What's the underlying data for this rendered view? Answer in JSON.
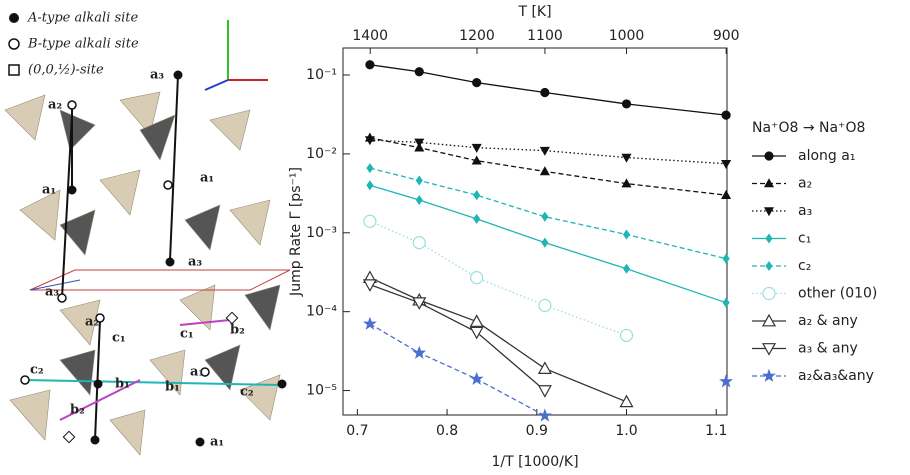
{
  "diagram": {
    "legend": [
      "A-type alkali site",
      "B-type alkali site",
      "(0,0,½)-site"
    ],
    "labels": [
      "a₂",
      "a₁",
      "a₃",
      "a₁",
      "a₃",
      "a₂",
      "a₃",
      "a₁",
      "c₂",
      "b₁",
      "b₂",
      "c₁",
      "b₁",
      "c₁",
      "b₂",
      "c₂",
      "a₁"
    ]
  },
  "chart_data": {
    "type": "line",
    "title": "",
    "xlabel": "1/T [1000/K]",
    "x2label": "T [K]",
    "ylabel": "Jump Rate Γ [ps⁻¹]",
    "log_y": true,
    "legend_title": "Na⁺O8 → Na⁺O8",
    "legend_position": "right",
    "x": [
      0.714,
      0.769,
      0.833,
      0.909,
      1.0,
      1.111
    ],
    "xlim": [
      0.684,
      1.112
    ],
    "xticks": [
      0.7,
      0.8,
      0.9,
      {
        "value": 1,
        "label": "1.0"
      },
      1.1
    ],
    "x2ticks": [
      1400,
      1200,
      1100,
      1000,
      900
    ],
    "ylim": [
      4.9e-06,
      0.22
    ],
    "yticks": [
      {
        "value": 0.1,
        "label": "10⁻¹"
      },
      {
        "value": 0.01,
        "label": "10⁻²"
      },
      {
        "value": 0.001,
        "label": "10⁻³"
      },
      {
        "value": 0.0001,
        "label": "10⁻⁴"
      },
      {
        "value": 1e-05,
        "label": "10⁻⁵"
      }
    ],
    "series": [
      {
        "name": "along a₁",
        "color": "#111111",
        "linestyle": "solid",
        "marker": "circle",
        "filled": true,
        "values": [
          0.135,
          0.11,
          0.08,
          0.06,
          0.043,
          0.031
        ]
      },
      {
        "name": "a₂",
        "color": "#111111",
        "linestyle": "dashed",
        "marker": "triangle-up",
        "filled": true,
        "values": [
          0.016,
          0.012,
          0.0082,
          0.006,
          0.0042,
          0.003
        ]
      },
      {
        "name": "a₃",
        "color": "#111111",
        "linestyle": "dotted",
        "marker": "triangle-down",
        "filled": true,
        "values": [
          0.015,
          0.014,
          0.012,
          0.011,
          0.009,
          0.0075
        ]
      },
      {
        "name": "c₁",
        "color": "#1fb5b5",
        "linestyle": "solid",
        "marker": "diamond",
        "filled": true,
        "values": [
          0.004,
          0.0026,
          0.0015,
          0.00075,
          0.00035,
          0.00013
        ]
      },
      {
        "name": "c₂",
        "color": "#1fb5b5",
        "linestyle": "dashed",
        "marker": "diamond",
        "filled": true,
        "values": [
          0.0066,
          0.0046,
          0.003,
          0.0016,
          0.00095,
          0.00047
        ]
      },
      {
        "name": "other (010)",
        "color": "#9adede",
        "linestyle": "dotted",
        "marker": "circle",
        "filled": false,
        "values": [
          0.0014,
          0.00075,
          0.00027,
          0.00012,
          5e-05,
          null
        ]
      },
      {
        "name": "a₂ & any",
        "color": "#333333",
        "linestyle": "solid",
        "marker": "triangle-up",
        "filled": false,
        "values": [
          0.00027,
          0.00014,
          7.5e-05,
          1.9e-05,
          7.2e-06,
          null
        ]
      },
      {
        "name": "a₃ & any",
        "color": "#333333",
        "linestyle": "solid",
        "marker": "triangle-down",
        "filled": false,
        "values": [
          0.00022,
          0.00013,
          5.5e-05,
          1e-05,
          null,
          null
        ]
      },
      {
        "name": "a₂&a₃&any",
        "color": "#4a6fd0",
        "linestyle": "dashed",
        "marker": "star",
        "filled": true,
        "values": [
          7e-05,
          3e-05,
          1.4e-05,
          4.8e-06,
          null,
          1.3e-05
        ]
      }
    ]
  }
}
